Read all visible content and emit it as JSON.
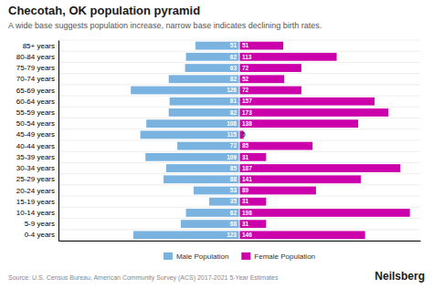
{
  "chart_data": {
    "type": "bar",
    "orientation": "horizontal",
    "title": "Checotah, OK population pyramid",
    "subtitle": "A wide base suggests population increase, narrow base indicates declining birth rates.",
    "annotations": [
      "Source: U.S. Census Bureau, American Community Survey (ACS) 2017-2021 5-Year Estimates",
      "Neilsberg"
    ],
    "categories": [
      "0-4 years",
      "5-9 years",
      "10-14 years",
      "15-19 years",
      "20-24 years",
      "25-29 years",
      "30-34 years",
      "35-39 years",
      "40-44 years",
      "45-49 years",
      "50-54 years",
      "55-59 years",
      "60-64 years",
      "65-69 years",
      "70-74 years",
      "75-79 years",
      "80-84 years",
      "85+ years"
    ],
    "series": [
      {
        "name": "Male Population",
        "color": "#7ab3e0",
        "values": [
          123,
          68,
          62,
          35,
          53,
          88,
          85,
          109,
          72,
          115,
          108,
          82,
          81,
          126,
          82,
          63,
          62,
          51
        ]
      },
      {
        "name": "Female Population",
        "color": "#cc00aa",
        "values": [
          146,
          31,
          198,
          31,
          89,
          141,
          187,
          31,
          85,
          5,
          138,
          173,
          157,
          72,
          52,
          72,
          113,
          51
        ]
      }
    ],
    "xlim": [
      -210,
      210
    ],
    "data_labels": true,
    "tick_labels": "y",
    "legend": "bottom"
  }
}
